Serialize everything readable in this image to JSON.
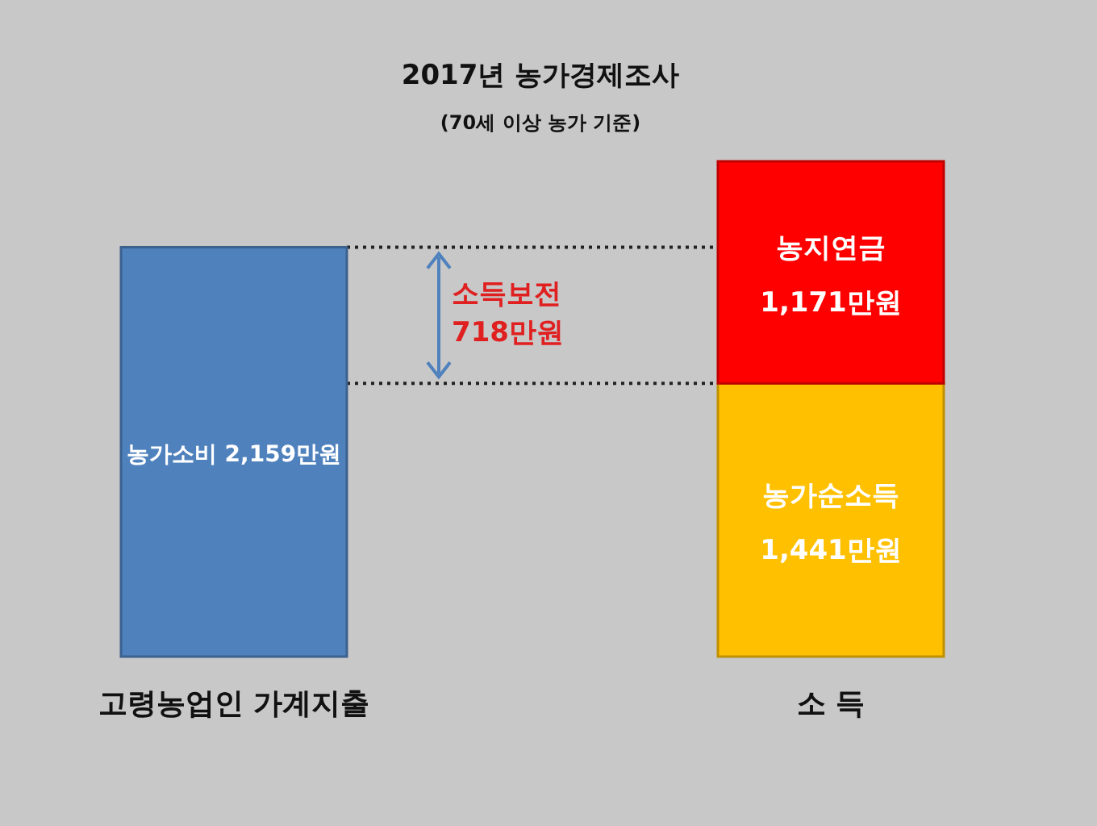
{
  "chart_data": {
    "type": "bar",
    "stacked": true,
    "title": "2017년 농가경제조사",
    "subtitle": "(70세 이상 농가 기준)",
    "categories": [
      "고령농업인 가계지출",
      "소 득"
    ],
    "series": [
      {
        "name": "농가소비",
        "color": "#4f81bd",
        "values": [
          2159,
          null
        ],
        "value_labels": [
          "2,159만원",
          null
        ]
      },
      {
        "name": "농가순소득",
        "color": "#ffc000",
        "values": [
          null,
          1441
        ],
        "value_labels": [
          null,
          "1,441만원"
        ]
      },
      {
        "name": "농지연금",
        "color": "#ff0000",
        "values": [
          null,
          1171
        ],
        "value_labels": [
          null,
          "1,171만원"
        ]
      }
    ],
    "ref_lines": [
      {
        "axis": "y",
        "value": 2159,
        "line_style": "dotted"
      },
      {
        "axis": "y",
        "value": 1441,
        "line_style": "dotted"
      }
    ],
    "annotations": [
      "소득보전 718만원"
    ],
    "legend": false
  }
}
